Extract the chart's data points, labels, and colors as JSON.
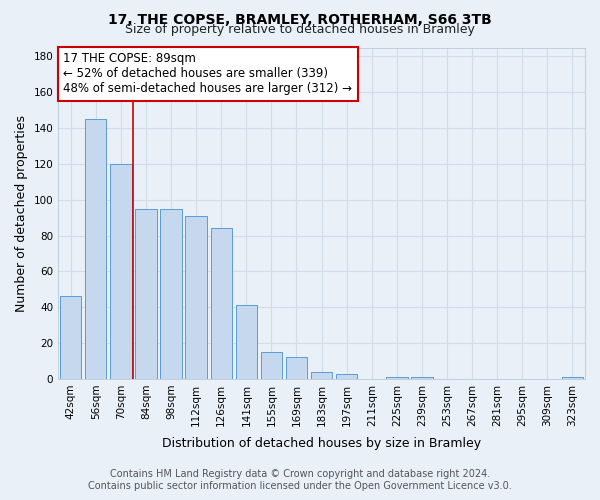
{
  "title": "17, THE COPSE, BRAMLEY, ROTHERHAM, S66 3TB",
  "subtitle": "Size of property relative to detached houses in Bramley",
  "xlabel": "Distribution of detached houses by size in Bramley",
  "ylabel": "Number of detached properties",
  "categories": [
    "42sqm",
    "56sqm",
    "70sqm",
    "84sqm",
    "98sqm",
    "112sqm",
    "126sqm",
    "141sqm",
    "155sqm",
    "169sqm",
    "183sqm",
    "197sqm",
    "211sqm",
    "225sqm",
    "239sqm",
    "253sqm",
    "267sqm",
    "281sqm",
    "295sqm",
    "309sqm",
    "323sqm"
  ],
  "values": [
    46,
    145,
    120,
    95,
    95,
    91,
    84,
    41,
    15,
    12,
    4,
    3,
    0,
    1,
    1,
    0,
    0,
    0,
    0,
    0,
    1
  ],
  "bar_color": "#c5d8ed",
  "bar_edge_color": "#5b9bd5",
  "bar_width": 0.85,
  "ylim": [
    0,
    185
  ],
  "yticks": [
    0,
    20,
    40,
    60,
    80,
    100,
    120,
    140,
    160,
    180
  ],
  "red_line_x": 2.5,
  "annotation_line1": "17 THE COPSE: 89sqm",
  "annotation_line2": "← 52% of detached houses are smaller (339)",
  "annotation_line3": "48% of semi-detached houses are larger (312) →",
  "annotation_box_color": "#cc0000",
  "footer_line1": "Contains HM Land Registry data © Crown copyright and database right 2024.",
  "footer_line2": "Contains public sector information licensed under the Open Government Licence v3.0.",
  "bg_color": "#eaf0f8",
  "grid_color": "#d0dce8",
  "title_fontsize": 10,
  "subtitle_fontsize": 9,
  "axis_label_fontsize": 9,
  "tick_fontsize": 7.5,
  "annotation_fontsize": 8.5,
  "footer_fontsize": 7
}
